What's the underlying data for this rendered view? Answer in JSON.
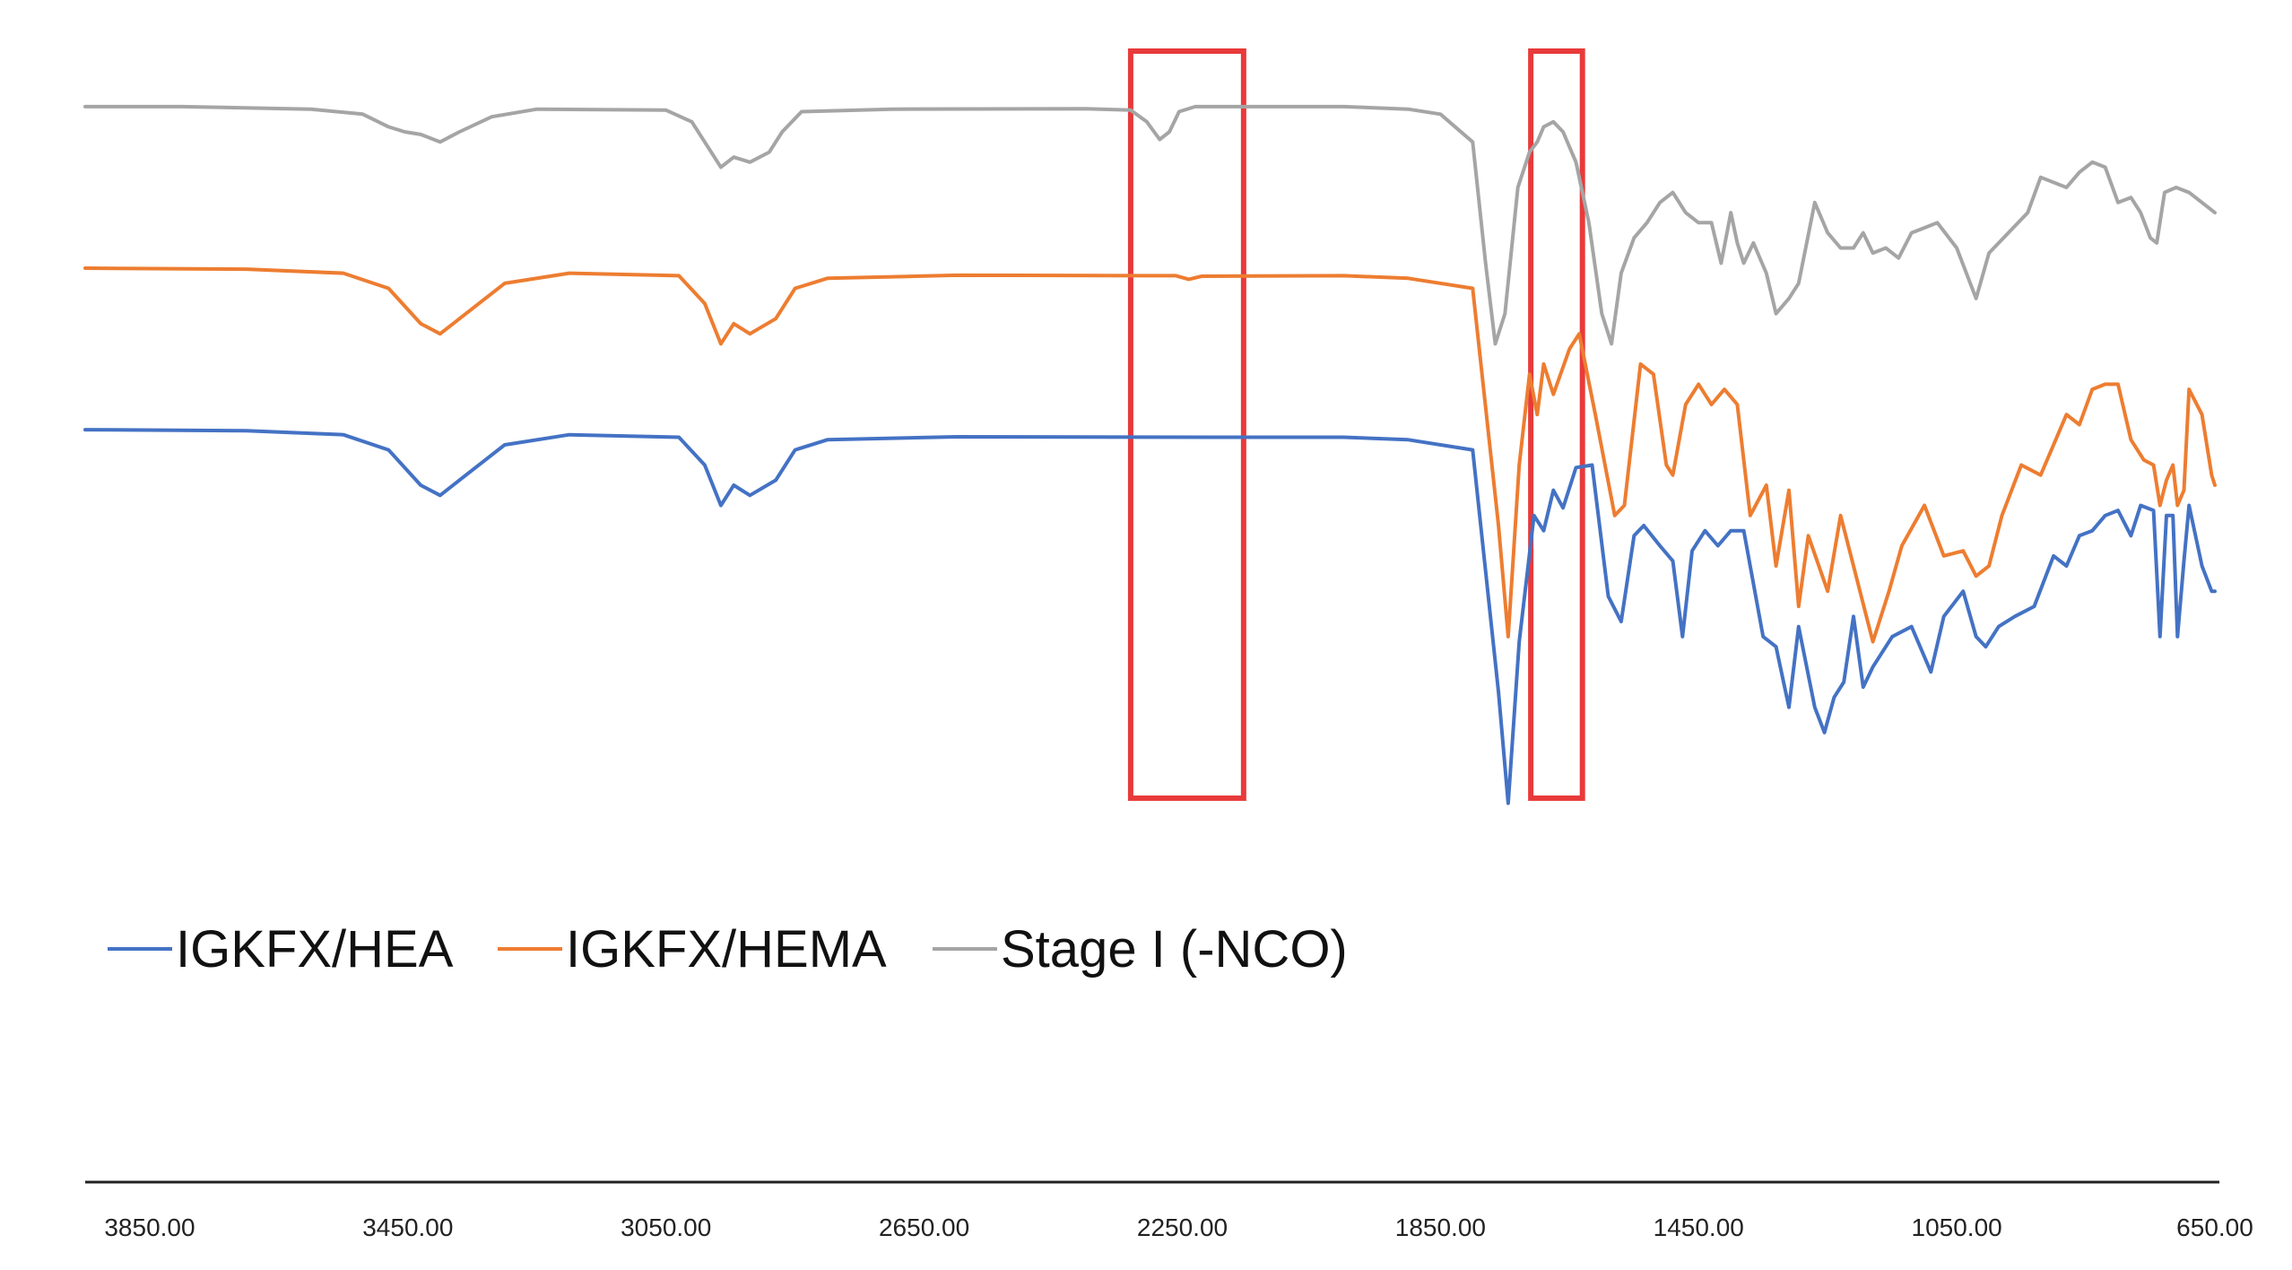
{
  "chart_data": {
    "type": "line",
    "title": "",
    "xlabel": "",
    "ylabel": "",
    "x_reversed": true,
    "xlim": [
      3950,
      650
    ],
    "x_ticks": [
      3850,
      3450,
      3050,
      2650,
      2250,
      1850,
      1450,
      1050,
      650
    ],
    "x_tick_labels": [
      "3850.00",
      "3450.00",
      "3050.00",
      "2650.00",
      "2250.00",
      "1850.00",
      "1450.00",
      "1050.00",
      "650.00"
    ],
    "y_axis_visible": false,
    "grid": false,
    "legend_position": "bottom-left",
    "series": [
      {
        "name": "IGKFX/HEA",
        "color": "#4472C4",
        "points": [
          [
            3950,
            0.97
          ],
          [
            3700,
            0.968
          ],
          [
            3550,
            0.96
          ],
          [
            3480,
            0.93
          ],
          [
            3430,
            0.86
          ],
          [
            3400,
            0.84
          ],
          [
            3360,
            0.88
          ],
          [
            3300,
            0.94
          ],
          [
            3200,
            0.96
          ],
          [
            3030,
            0.955
          ],
          [
            2990,
            0.9
          ],
          [
            2965,
            0.82
          ],
          [
            2945,
            0.86
          ],
          [
            2920,
            0.84
          ],
          [
            2880,
            0.87
          ],
          [
            2850,
            0.93
          ],
          [
            2800,
            0.95
          ],
          [
            2600,
            0.956
          ],
          [
            2200,
            0.955
          ],
          [
            2000,
            0.955
          ],
          [
            1900,
            0.95
          ],
          [
            1800,
            0.93
          ],
          [
            1760,
            0.45
          ],
          [
            1745,
            0.23
          ],
          [
            1728,
            0.55
          ],
          [
            1705,
            0.8
          ],
          [
            1690,
            0.77
          ],
          [
            1675,
            0.85
          ],
          [
            1660,
            0.815
          ],
          [
            1640,
            0.895
          ],
          [
            1615,
            0.9
          ],
          [
            1590,
            0.64
          ],
          [
            1570,
            0.59
          ],
          [
            1550,
            0.76
          ],
          [
            1535,
            0.78
          ],
          [
            1510,
            0.74
          ],
          [
            1490,
            0.71
          ],
          [
            1475,
            0.56
          ],
          [
            1460,
            0.73
          ],
          [
            1440,
            0.77
          ],
          [
            1420,
            0.74
          ],
          [
            1400,
            0.77
          ],
          [
            1380,
            0.77
          ],
          [
            1350,
            0.56
          ],
          [
            1330,
            0.54
          ],
          [
            1310,
            0.42
          ],
          [
            1295,
            0.58
          ],
          [
            1270,
            0.42
          ],
          [
            1255,
            0.37
          ],
          [
            1240,
            0.44
          ],
          [
            1225,
            0.47
          ],
          [
            1210,
            0.6
          ],
          [
            1195,
            0.46
          ],
          [
            1180,
            0.5
          ],
          [
            1150,
            0.56
          ],
          [
            1120,
            0.58
          ],
          [
            1090,
            0.49
          ],
          [
            1070,
            0.6
          ],
          [
            1040,
            0.65
          ],
          [
            1020,
            0.56
          ],
          [
            1005,
            0.54
          ],
          [
            985,
            0.58
          ],
          [
            960,
            0.6
          ],
          [
            930,
            0.62
          ],
          [
            900,
            0.72
          ],
          [
            880,
            0.7
          ],
          [
            860,
            0.76
          ],
          [
            840,
            0.77
          ],
          [
            820,
            0.8
          ],
          [
            800,
            0.81
          ],
          [
            780,
            0.76
          ],
          [
            765,
            0.82
          ],
          [
            745,
            0.81
          ],
          [
            735,
            0.56
          ],
          [
            725,
            0.8
          ],
          [
            715,
            0.8
          ],
          [
            708,
            0.56
          ],
          [
            698,
            0.71
          ],
          [
            690,
            0.82
          ],
          [
            670,
            0.7
          ],
          [
            655,
            0.65
          ],
          [
            650,
            0.65
          ]
        ]
      },
      {
        "name": "IGKFX/HEMA",
        "color": "#ED7D31",
        "points": [
          [
            3950,
            1.29
          ],
          [
            3700,
            1.288
          ],
          [
            3550,
            1.28
          ],
          [
            3480,
            1.25
          ],
          [
            3430,
            1.18
          ],
          [
            3400,
            1.16
          ],
          [
            3360,
            1.2
          ],
          [
            3300,
            1.26
          ],
          [
            3200,
            1.28
          ],
          [
            3030,
            1.275
          ],
          [
            2990,
            1.22
          ],
          [
            2965,
            1.14
          ],
          [
            2945,
            1.18
          ],
          [
            2920,
            1.16
          ],
          [
            2880,
            1.19
          ],
          [
            2850,
            1.25
          ],
          [
            2800,
            1.27
          ],
          [
            2600,
            1.276
          ],
          [
            2260,
            1.275
          ],
          [
            2240,
            1.268
          ],
          [
            2220,
            1.274
          ],
          [
            2000,
            1.275
          ],
          [
            1900,
            1.27
          ],
          [
            1800,
            1.25
          ],
          [
            1760,
            0.78
          ],
          [
            1745,
            0.56
          ],
          [
            1728,
            0.9
          ],
          [
            1712,
            1.08
          ],
          [
            1700,
            1.0
          ],
          [
            1690,
            1.1
          ],
          [
            1675,
            1.04
          ],
          [
            1650,
            1.13
          ],
          [
            1635,
            1.16
          ],
          [
            1610,
            1.0
          ],
          [
            1580,
            0.8
          ],
          [
            1565,
            0.82
          ],
          [
            1540,
            1.1
          ],
          [
            1520,
            1.08
          ],
          [
            1500,
            0.9
          ],
          [
            1490,
            0.88
          ],
          [
            1470,
            1.02
          ],
          [
            1450,
            1.06
          ],
          [
            1430,
            1.02
          ],
          [
            1410,
            1.05
          ],
          [
            1390,
            1.02
          ],
          [
            1370,
            0.8
          ],
          [
            1345,
            0.86
          ],
          [
            1330,
            0.7
          ],
          [
            1310,
            0.85
          ],
          [
            1295,
            0.62
          ],
          [
            1280,
            0.76
          ],
          [
            1250,
            0.65
          ],
          [
            1230,
            0.8
          ],
          [
            1210,
            0.7
          ],
          [
            1180,
            0.55
          ],
          [
            1155,
            0.65
          ],
          [
            1135,
            0.74
          ],
          [
            1100,
            0.82
          ],
          [
            1070,
            0.72
          ],
          [
            1040,
            0.73
          ],
          [
            1020,
            0.68
          ],
          [
            1000,
            0.7
          ],
          [
            980,
            0.8
          ],
          [
            950,
            0.9
          ],
          [
            920,
            0.88
          ],
          [
            880,
            1.0
          ],
          [
            860,
            0.98
          ],
          [
            840,
            1.05
          ],
          [
            820,
            1.06
          ],
          [
            800,
            1.06
          ],
          [
            780,
            0.95
          ],
          [
            760,
            0.91
          ],
          [
            745,
            0.9
          ],
          [
            735,
            0.82
          ],
          [
            725,
            0.87
          ],
          [
            715,
            0.9
          ],
          [
            708,
            0.82
          ],
          [
            698,
            0.85
          ],
          [
            690,
            1.05
          ],
          [
            670,
            1.0
          ],
          [
            655,
            0.88
          ],
          [
            650,
            0.86
          ]
        ]
      },
      {
        "name": "Stage I (-NCO)",
        "color": "#A5A5A5",
        "points": [
          [
            3950,
            1.61
          ],
          [
            3800,
            1.61
          ],
          [
            3600,
            1.605
          ],
          [
            3520,
            1.595
          ],
          [
            3480,
            1.57
          ],
          [
            3455,
            1.56
          ],
          [
            3430,
            1.555
          ],
          [
            3400,
            1.54
          ],
          [
            3370,
            1.56
          ],
          [
            3320,
            1.59
          ],
          [
            3250,
            1.605
          ],
          [
            3050,
            1.603
          ],
          [
            3010,
            1.58
          ],
          [
            2980,
            1.52
          ],
          [
            2965,
            1.49
          ],
          [
            2945,
            1.51
          ],
          [
            2920,
            1.5
          ],
          [
            2890,
            1.52
          ],
          [
            2870,
            1.56
          ],
          [
            2840,
            1.6
          ],
          [
            2700,
            1.605
          ],
          [
            2400,
            1.606
          ],
          [
            2330,
            1.603
          ],
          [
            2305,
            1.58
          ],
          [
            2285,
            1.545
          ],
          [
            2270,
            1.56
          ],
          [
            2255,
            1.6
          ],
          [
            2230,
            1.61
          ],
          [
            2000,
            1.61
          ],
          [
            1900,
            1.605
          ],
          [
            1850,
            1.595
          ],
          [
            1800,
            1.54
          ],
          [
            1780,
            1.3
          ],
          [
            1765,
            1.14
          ],
          [
            1750,
            1.2
          ],
          [
            1730,
            1.45
          ],
          [
            1712,
            1.52
          ],
          [
            1700,
            1.54
          ],
          [
            1690,
            1.57
          ],
          [
            1675,
            1.58
          ],
          [
            1660,
            1.56
          ],
          [
            1640,
            1.5
          ],
          [
            1620,
            1.38
          ],
          [
            1600,
            1.2
          ],
          [
            1585,
            1.14
          ],
          [
            1570,
            1.28
          ],
          [
            1550,
            1.35
          ],
          [
            1530,
            1.38
          ],
          [
            1510,
            1.42
          ],
          [
            1490,
            1.44
          ],
          [
            1470,
            1.4
          ],
          [
            1450,
            1.38
          ],
          [
            1430,
            1.38
          ],
          [
            1415,
            1.3
          ],
          [
            1400,
            1.4
          ],
          [
            1390,
            1.34
          ],
          [
            1380,
            1.3
          ],
          [
            1365,
            1.34
          ],
          [
            1345,
            1.28
          ],
          [
            1330,
            1.2
          ],
          [
            1310,
            1.23
          ],
          [
            1295,
            1.26
          ],
          [
            1270,
            1.42
          ],
          [
            1250,
            1.36
          ],
          [
            1230,
            1.33
          ],
          [
            1210,
            1.33
          ],
          [
            1195,
            1.36
          ],
          [
            1180,
            1.32
          ],
          [
            1160,
            1.33
          ],
          [
            1140,
            1.31
          ],
          [
            1120,
            1.36
          ],
          [
            1100,
            1.37
          ],
          [
            1080,
            1.38
          ],
          [
            1050,
            1.33
          ],
          [
            1020,
            1.23
          ],
          [
            1000,
            1.32
          ],
          [
            970,
            1.36
          ],
          [
            940,
            1.4
          ],
          [
            920,
            1.47
          ],
          [
            880,
            1.45
          ],
          [
            860,
            1.48
          ],
          [
            840,
            1.5
          ],
          [
            820,
            1.49
          ],
          [
            800,
            1.42
          ],
          [
            780,
            1.43
          ],
          [
            765,
            1.4
          ],
          [
            750,
            1.35
          ],
          [
            740,
            1.34
          ],
          [
            728,
            1.44
          ],
          [
            710,
            1.45
          ],
          [
            690,
            1.44
          ],
          [
            670,
            1.42
          ],
          [
            650,
            1.4
          ]
        ]
      }
    ],
    "annotations": [
      {
        "type": "highlight-box",
        "color": "#E83A3A",
        "x_range": [
          2330,
          2155
        ],
        "y_range": [
          0.24,
          1.72
        ]
      },
      {
        "type": "highlight-box",
        "color": "#E83A3A",
        "x_range": [
          1710,
          1630
        ],
        "y_range": [
          0.24,
          1.72
        ]
      }
    ]
  }
}
